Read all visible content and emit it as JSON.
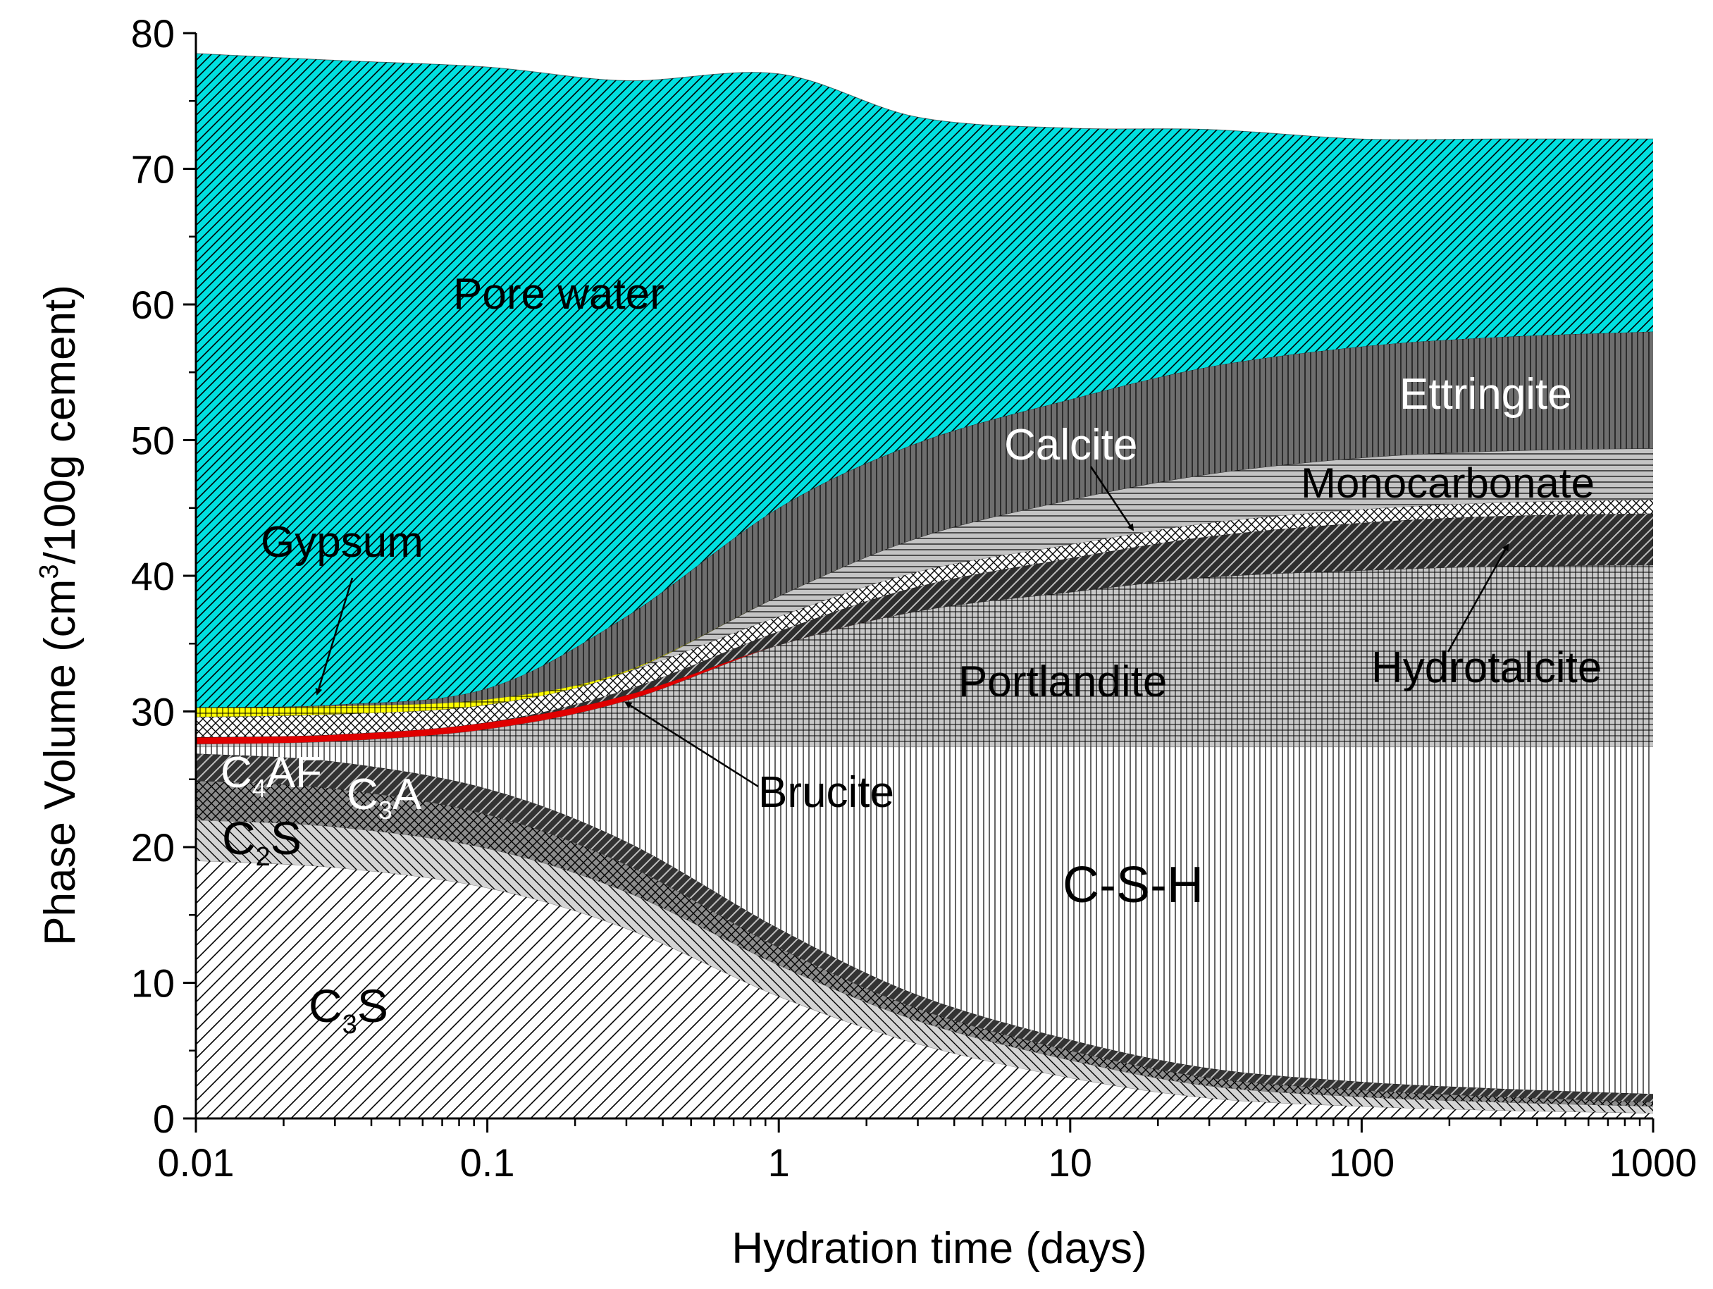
{
  "chart_data": {
    "type": "area",
    "stacked": true,
    "title": "",
    "xlabel": "Hydration time (days)",
    "ylabel_prefix": "Phase Volume (cm",
    "ylabel_sup": "3",
    "ylabel_suffix": "/100g cement)",
    "xscale": "log",
    "xlim": [
      0.01,
      1000
    ],
    "ylim": [
      0,
      80
    ],
    "x_ticks": [
      0.01,
      0.1,
      1,
      10,
      100,
      1000
    ],
    "x_tick_labels": [
      "0.01",
      "0.1",
      "1",
      "10",
      "100",
      "1000"
    ],
    "y_ticks": [
      0,
      10,
      20,
      30,
      40,
      50,
      60,
      70,
      80
    ],
    "y_tick_labels": [
      "0",
      "10",
      "20",
      "30",
      "40",
      "50",
      "60",
      "70",
      "80"
    ],
    "x": [
      0.01,
      0.03,
      0.1,
      0.3,
      1,
      3,
      10,
      30,
      100,
      300,
      1000
    ],
    "series": [
      {
        "name": "C3S",
        "fill": "#ffffff",
        "pattern": "diag-fwd-sparse",
        "values": [
          19.0,
          18.5,
          17.0,
          14.0,
          9.0,
          5.5,
          3.0,
          1.5,
          0.9,
          0.6,
          0.4
        ]
      },
      {
        "name": "C2S",
        "fill": "#d4d4d4",
        "pattern": "diag-back",
        "values": [
          3.0,
          3.0,
          2.9,
          2.7,
          2.3,
          1.7,
          1.3,
          0.9,
          0.7,
          0.6,
          0.5
        ]
      },
      {
        "name": "C3A",
        "fill": "#8c8c8c",
        "pattern": "crosshatch",
        "values": [
          2.9,
          2.8,
          2.5,
          2.0,
          1.3,
          0.9,
          0.7,
          0.6,
          0.5,
          0.4,
          0.3
        ]
      },
      {
        "name": "C4AF",
        "fill": "#333333",
        "pattern": "diag-fwd-light",
        "values": [
          2.0,
          2.0,
          1.9,
          1.7,
          1.4,
          1.0,
          0.8,
          0.7,
          0.6,
          0.6,
          0.6
        ]
      },
      {
        "name": "C-S-H",
        "fill": "#ffffff",
        "pattern": "vertical",
        "values": [
          0.5,
          1.1,
          3.1,
          7.0,
          13.4,
          18.3,
          21.6,
          23.7,
          24.7,
          25.2,
          25.6
        ]
      },
      {
        "name": "Portlandite",
        "fill": "#c8c8c8",
        "pattern": "grid",
        "values": [
          0.2,
          0.4,
          1.3,
          3.4,
          7.5,
          10.0,
          11.4,
          12.5,
          13.0,
          13.3,
          13.4
        ]
      },
      {
        "name": "Brucite",
        "fill": "#e00000",
        "pattern": "solid",
        "values": [
          0.5,
          0.5,
          0.5,
          0.4,
          0.0,
          0.0,
          0.0,
          0.0,
          0.0,
          0.0,
          0.0
        ]
      },
      {
        "name": "Hydrotalcite",
        "fill": "#2e2e2e",
        "pattern": "diag-fwd-light",
        "values": [
          0.0,
          0.0,
          0.0,
          0.4,
          1.0,
          1.8,
          2.5,
          3.0,
          3.5,
          3.7,
          3.8
        ]
      },
      {
        "name": "Monocarbonate",
        "fill": "#ffffff",
        "pattern": "crosshatch",
        "values": [
          1.5,
          1.5,
          1.3,
          1.3,
          1.1,
          1.1,
          1.0,
          1.0,
          1.0,
          1.0,
          1.0
        ]
      },
      {
        "name": "Calcite",
        "fill": "#c4c4c4",
        "pattern": "horizontal",
        "values": [
          0.0,
          0.0,
          0.0,
          0.0,
          1.5,
          2.5,
          3.3,
          3.6,
          3.8,
          3.8,
          3.8
        ]
      },
      {
        "name": "Gypsum",
        "fill": "#ffff00",
        "pattern": "grid",
        "values": [
          0.7,
          0.6,
          0.4,
          0.1,
          0.0,
          0.0,
          0.0,
          0.0,
          0.0,
          0.0,
          0.0
        ]
      },
      {
        "name": "Ettringite",
        "fill": "#6e6e6e",
        "pattern": "vertical",
        "values": [
          0.0,
          0.1,
          0.8,
          4.0,
          6.5,
          7.0,
          7.4,
          7.9,
          8.2,
          8.4,
          8.6
        ]
      },
      {
        "name": "Pore water",
        "fill": "#00e0e0",
        "pattern": "diag-fwd",
        "values": [
          48.2,
          47.5,
          45.8,
          39.5,
          32.0,
          24.0,
          20.0,
          17.5,
          15.3,
          14.6,
          14.2
        ]
      }
    ],
    "labels": [
      {
        "key": "pore_water",
        "text": "Pore water",
        "color": "#000000"
      },
      {
        "key": "ettringite",
        "text": "Ettringite",
        "color": "#ffffff"
      },
      {
        "key": "calcite",
        "text": "Calcite",
        "color": "#ffffff"
      },
      {
        "key": "monocarbonate",
        "text": "Monocarbonate",
        "color": "#000000"
      },
      {
        "key": "gypsum",
        "text": "Gypsum",
        "color": "#000000"
      },
      {
        "key": "portlandite",
        "text": "Portlandite",
        "color": "#000000"
      },
      {
        "key": "hydrotalcite",
        "text": "Hydrotalcite",
        "color": "#000000"
      },
      {
        "key": "brucite",
        "text": "Brucite",
        "color": "#000000"
      },
      {
        "key": "csh",
        "text": "C-S-H",
        "color": "#000000"
      }
    ],
    "subscript_labels": [
      {
        "key": "c4af",
        "main": "C",
        "sub": "4",
        "rest": "AF",
        "color": "#ffffff"
      },
      {
        "key": "c3a",
        "main": "C",
        "sub": "3",
        "rest": "A",
        "color": "#ffffff"
      },
      {
        "key": "c2s",
        "main": "C",
        "sub": "2",
        "rest": "S",
        "color": "#000000"
      },
      {
        "key": "c3s",
        "main": "C",
        "sub": "3",
        "rest": "S",
        "color": "#000000"
      }
    ]
  }
}
